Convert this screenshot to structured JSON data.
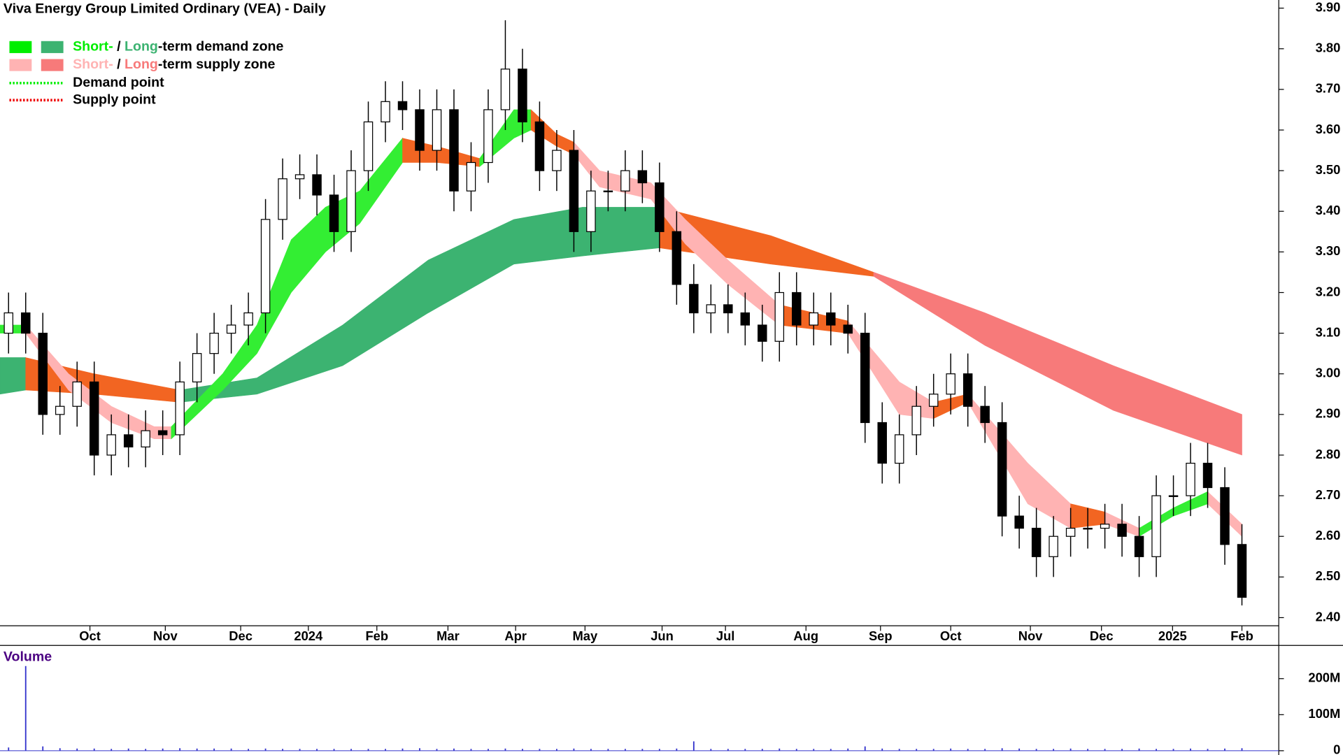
{
  "chart_data": [
    {
      "type": "candlestick",
      "title": "Viva Energy Group Limited Ordinary (VEA) - Daily",
      "xlim": [
        -0.5,
        74
      ],
      "xticks": [
        {
          "value": 4.75,
          "label": "Oct"
        },
        {
          "value": 9.15,
          "label": "Nov"
        },
        {
          "value": 13.55,
          "label": "Dec"
        },
        {
          "value": 17.5,
          "label": "2024"
        },
        {
          "value": 21.5,
          "label": "Feb"
        },
        {
          "value": 25.65,
          "label": "Mar"
        },
        {
          "value": 29.6,
          "label": "Apr"
        },
        {
          "value": 33.65,
          "label": "May"
        },
        {
          "value": 38.15,
          "label": "Jun"
        },
        {
          "value": 41.85,
          "label": "Jul"
        },
        {
          "value": 46.55,
          "label": "Aug"
        },
        {
          "value": 50.9,
          "label": "Sep"
        },
        {
          "value": 55,
          "label": "Oct"
        },
        {
          "value": 59.65,
          "label": "Nov"
        },
        {
          "value": 63.8,
          "label": "Dec"
        },
        {
          "value": 67.95,
          "label": "2025"
        },
        {
          "value": 72,
          "label": "Feb"
        }
      ],
      "ylim": [
        2.38,
        3.92
      ],
      "yticks": [
        {
          "value": 2.4,
          "label": "2.40"
        },
        {
          "value": 2.5,
          "label": "2.50"
        },
        {
          "value": 2.6,
          "label": "2.60"
        },
        {
          "value": 2.7,
          "label": "2.70"
        },
        {
          "value": 2.8,
          "label": "2.80"
        },
        {
          "value": 2.9,
          "label": "2.90"
        },
        {
          "value": 3.0,
          "label": "3.00"
        },
        {
          "value": 3.1,
          "label": "3.10"
        },
        {
          "value": 3.2,
          "label": "3.20"
        },
        {
          "value": 3.3,
          "label": "3.30"
        },
        {
          "value": 3.4,
          "label": "3.40"
        },
        {
          "value": 3.5,
          "label": "3.50"
        },
        {
          "value": 3.6,
          "label": "3.60"
        },
        {
          "value": 3.7,
          "label": "3.70"
        },
        {
          "value": 3.8,
          "label": "3.80"
        },
        {
          "value": 3.9,
          "label": "3.90"
        }
      ],
      "open": [
        3.1,
        3.15,
        3.1,
        2.9,
        2.92,
        2.98,
        2.8,
        2.85,
        2.82,
        2.86,
        2.85,
        2.98,
        3.05,
        3.1,
        3.12,
        3.15,
        3.38,
        3.48,
        3.49,
        3.44,
        3.35,
        3.5,
        3.62,
        3.67,
        3.65,
        3.55,
        3.65,
        3.45,
        3.52,
        3.65,
        3.75,
        3.62,
        3.5,
        3.55,
        3.35,
        3.45,
        3.45,
        3.5,
        3.47,
        3.35,
        3.22,
        3.15,
        3.17,
        3.15,
        3.12,
        3.08,
        3.2,
        3.12,
        3.15,
        3.12,
        3.1,
        2.88,
        2.78,
        2.85,
        2.92,
        2.95,
        3.0,
        2.92,
        2.88,
        2.65,
        2.62,
        2.55,
        2.6,
        2.62,
        2.62,
        2.63,
        2.6,
        2.55,
        2.7,
        2.7,
        2.78,
        2.72,
        2.58
      ],
      "high": [
        3.2,
        3.2,
        3.15,
        2.97,
        3.03,
        3.03,
        2.9,
        2.9,
        2.91,
        2.91,
        3.03,
        3.1,
        3.15,
        3.17,
        3.2,
        3.43,
        3.53,
        3.54,
        3.54,
        3.49,
        3.55,
        3.67,
        3.72,
        3.72,
        3.7,
        3.7,
        3.7,
        3.57,
        3.7,
        3.87,
        3.8,
        3.67,
        3.6,
        3.6,
        3.5,
        3.5,
        3.55,
        3.55,
        3.52,
        3.4,
        3.27,
        3.22,
        3.22,
        3.2,
        3.17,
        3.25,
        3.25,
        3.2,
        3.2,
        3.17,
        3.15,
        2.93,
        2.9,
        2.97,
        3.0,
        3.05,
        3.05,
        2.97,
        2.93,
        2.7,
        2.67,
        2.65,
        2.67,
        2.67,
        2.68,
        2.68,
        2.65,
        2.75,
        2.75,
        2.83,
        2.83,
        2.77,
        2.63
      ],
      "low": [
        3.05,
        3.05,
        2.85,
        2.85,
        2.87,
        2.75,
        2.75,
        2.77,
        2.77,
        2.8,
        2.8,
        2.93,
        3.0,
        3.05,
        3.07,
        3.1,
        3.33,
        3.43,
        3.39,
        3.3,
        3.3,
        3.45,
        3.57,
        3.6,
        3.5,
        3.5,
        3.4,
        3.4,
        3.47,
        3.6,
        3.57,
        3.45,
        3.45,
        3.3,
        3.3,
        3.4,
        3.4,
        3.42,
        3.3,
        3.17,
        3.1,
        3.1,
        3.1,
        3.07,
        3.03,
        3.03,
        3.07,
        3.07,
        3.07,
        3.05,
        2.83,
        2.73,
        2.73,
        2.8,
        2.87,
        2.9,
        2.87,
        2.83,
        2.6,
        2.57,
        2.5,
        2.5,
        2.55,
        2.57,
        2.57,
        2.55,
        2.5,
        2.5,
        2.65,
        2.65,
        2.67,
        2.53,
        2.43
      ],
      "close": [
        3.15,
        3.1,
        2.9,
        2.92,
        2.98,
        2.8,
        2.85,
        2.82,
        2.86,
        2.85,
        2.98,
        3.05,
        3.1,
        3.12,
        3.15,
        3.38,
        3.48,
        3.49,
        3.44,
        3.35,
        3.5,
        3.62,
        3.67,
        3.65,
        3.55,
        3.65,
        3.45,
        3.52,
        3.65,
        3.75,
        3.62,
        3.5,
        3.55,
        3.35,
        3.45,
        3.45,
        3.5,
        3.47,
        3.35,
        3.22,
        3.15,
        3.17,
        3.15,
        3.12,
        3.08,
        3.2,
        3.12,
        3.15,
        3.12,
        3.1,
        2.88,
        2.78,
        2.85,
        2.92,
        2.95,
        3.0,
        2.92,
        2.88,
        2.65,
        2.62,
        2.55,
        2.6,
        2.62,
        2.62,
        2.63,
        2.6,
        2.55,
        2.7,
        2.7,
        2.78,
        2.72,
        2.58,
        2.45
      ],
      "up_color": "#ffffff",
      "down_color": "#000000",
      "wick_color": "#000000",
      "zones": {
        "long": [
          {
            "color": "#3cb371",
            "x": [
              -0.5,
              1
            ],
            "upper": [
              3.04,
              3.04
            ],
            "lower": [
              2.95,
              2.96
            ]
          },
          {
            "color": "#f26522",
            "x": [
              1,
              5,
              10
            ],
            "upper": [
              3.04,
              3.0,
              2.96
            ],
            "lower": [
              2.96,
              2.95,
              2.93
            ]
          },
          {
            "color": "#3cb371",
            "x": [
              10,
              14.5,
              19.5,
              24.5,
              29.5,
              33.5,
              38
            ],
            "upper": [
              2.96,
              2.99,
              3.12,
              3.28,
              3.38,
              3.41,
              3.41
            ],
            "lower": [
              2.93,
              2.95,
              3.02,
              3.15,
              3.27,
              3.29,
              3.31
            ]
          },
          {
            "color": "#f26522",
            "x": [
              38,
              44.5,
              50.5
            ],
            "upper": [
              3.41,
              3.34,
              3.25
            ],
            "lower": [
              3.31,
              3.27,
              3.24
            ]
          },
          {
            "color": "#f77a7a",
            "x": [
              50.5,
              57,
              64.5,
              72
            ],
            "upper": [
              3.25,
              3.15,
              3.02,
              2.9
            ],
            "lower": [
              3.24,
              3.07,
              2.91,
              2.8
            ]
          }
        ],
        "short": [
          {
            "color": "#33ee33",
            "x": [
              -0.5,
              1
            ],
            "upper": [
              3.12,
              3.12
            ],
            "lower": [
              3.1,
              3.1
            ]
          },
          {
            "color": "#ffb3b3",
            "x": [
              1,
              3.5,
              6,
              8.5,
              9.5
            ],
            "upper": [
              3.12,
              3.0,
              2.92,
              2.87,
              2.87
            ],
            "lower": [
              3.1,
              2.96,
              2.88,
              2.84,
              2.84
            ]
          },
          {
            "color": "#33ee33",
            "x": [
              9.5,
              12.5,
              14.5,
              16.5,
              18.5,
              20.5,
              23
            ],
            "upper": [
              2.87,
              3.0,
              3.12,
              3.33,
              3.41,
              3.45,
              3.58
            ],
            "lower": [
              2.84,
              2.96,
              3.05,
              3.2,
              3.3,
              3.37,
              3.52
            ]
          },
          {
            "color": "#f26522",
            "x": [
              23,
              25,
              27.5
            ],
            "upper": [
              3.58,
              3.56,
              3.53
            ],
            "lower": [
              3.52,
              3.52,
              3.51
            ]
          },
          {
            "color": "#33ee33",
            "x": [
              27.5,
              29.5,
              30.5
            ],
            "upper": [
              3.53,
              3.65,
              3.65
            ],
            "lower": [
              3.51,
              3.58,
              3.6
            ]
          },
          {
            "color": "#f26522",
            "x": [
              30.5,
              32,
              33
            ],
            "upper": [
              3.65,
              3.59,
              3.57
            ],
            "lower": [
              3.6,
              3.56,
              3.54
            ]
          },
          {
            "color": "#ffb3b3",
            "x": [
              33,
              34.5,
              37.5,
              39.5,
              42,
              45
            ],
            "upper": [
              3.57,
              3.5,
              3.47,
              3.38,
              3.28,
              3.17
            ],
            "lower": [
              3.54,
              3.46,
              3.43,
              3.32,
              3.22,
              3.12
            ]
          },
          {
            "color": "#f26522",
            "x": [
              45,
              49
            ],
            "upper": [
              3.17,
              3.13
            ],
            "lower": [
              3.12,
              3.1
            ]
          },
          {
            "color": "#ffb3b3",
            "x": [
              49,
              52,
              54
            ],
            "upper": [
              3.13,
              2.98,
              2.93
            ],
            "lower": [
              3.1,
              2.9,
              2.89
            ]
          },
          {
            "color": "#f26522",
            "x": [
              54,
              56
            ],
            "upper": [
              2.93,
              2.95
            ],
            "lower": [
              2.89,
              2.93
            ]
          },
          {
            "color": "#ffb3b3",
            "x": [
              56,
              59.5,
              62
            ],
            "upper": [
              2.95,
              2.78,
              2.68
            ],
            "lower": [
              2.93,
              2.68,
              2.62
            ]
          },
          {
            "color": "#f26522",
            "x": [
              62,
              64
            ],
            "upper": [
              2.68,
              2.66
            ],
            "lower": [
              2.62,
              2.63
            ]
          },
          {
            "color": "#ffb3b3",
            "x": [
              64,
              66
            ],
            "upper": [
              2.66,
              2.62
            ],
            "lower": [
              2.63,
              2.6
            ]
          },
          {
            "color": "#33ee33",
            "x": [
              66,
              68,
              70
            ],
            "upper": [
              2.62,
              2.67,
              2.71
            ],
            "lower": [
              2.6,
              2.65,
              2.68
            ]
          },
          {
            "color": "#ffb3b3",
            "x": [
              70,
              72
            ],
            "upper": [
              2.71,
              2.63
            ],
            "lower": [
              2.68,
              2.6
            ]
          }
        ]
      },
      "legend": [
        {
          "swatches": [
            "#00ee00",
            "#3cb371"
          ],
          "parts": [
            {
              "text": "Short-",
              "color": "#00ee00"
            },
            {
              "text": " / ",
              "color": "#000000"
            },
            {
              "text": "Long",
              "color": "#3cb371"
            },
            {
              "text": "-term demand zone",
              "color": "#000000"
            }
          ]
        },
        {
          "swatches": [
            "#ffb3b3",
            "#f77a7a"
          ],
          "parts": [
            {
              "text": "Short-",
              "color": "#ffb3b3"
            },
            {
              "text": " / ",
              "color": "#000000"
            },
            {
              "text": "Long",
              "color": "#f77a7a"
            },
            {
              "text": "-term supply zone",
              "color": "#000000"
            }
          ]
        },
        {
          "line": "#00ee00",
          "parts": [
            {
              "text": "Demand point",
              "color": "#000000"
            }
          ]
        },
        {
          "line": "#ee0000",
          "parts": [
            {
              "text": "Supply point",
              "color": "#000000"
            }
          ]
        }
      ]
    },
    {
      "type": "bar",
      "title": "Volume",
      "title_color": "#4b0082",
      "color": "#3333cc",
      "xlim": [
        -0.5,
        74
      ],
      "ylim": [
        0,
        285000000
      ],
      "yticks": [
        0,
        {
          "value": 100000000,
          "label": "100M"
        },
        {
          "value": 200000000,
          "label": "200M"
        }
      ],
      "values": [
        9000000,
        235000000,
        12000000,
        7000000,
        6000000,
        6000000,
        5000000,
        6000000,
        5000000,
        6000000,
        7000000,
        6000000,
        6000000,
        6000000,
        5000000,
        6000000,
        5000000,
        5000000,
        5000000,
        5000000,
        5000000,
        5000000,
        5000000,
        6000000,
        7000000,
        5000000,
        6000000,
        5000000,
        5000000,
        6000000,
        5000000,
        5000000,
        5000000,
        6000000,
        5000000,
        5000000,
        5000000,
        5000000,
        5000000,
        6000000,
        26000000,
        5000000,
        5000000,
        5000000,
        5000000,
        6000000,
        5000000,
        5000000,
        5000000,
        6000000,
        12000000,
        6000000,
        5000000,
        5000000,
        5000000,
        6000000,
        5000000,
        5000000,
        7000000,
        6000000,
        5000000,
        5000000,
        6000000,
        5000000,
        5000000,
        5000000,
        6000000,
        5000000,
        5000000,
        6000000,
        5000000,
        6000000,
        7000000
      ]
    }
  ]
}
